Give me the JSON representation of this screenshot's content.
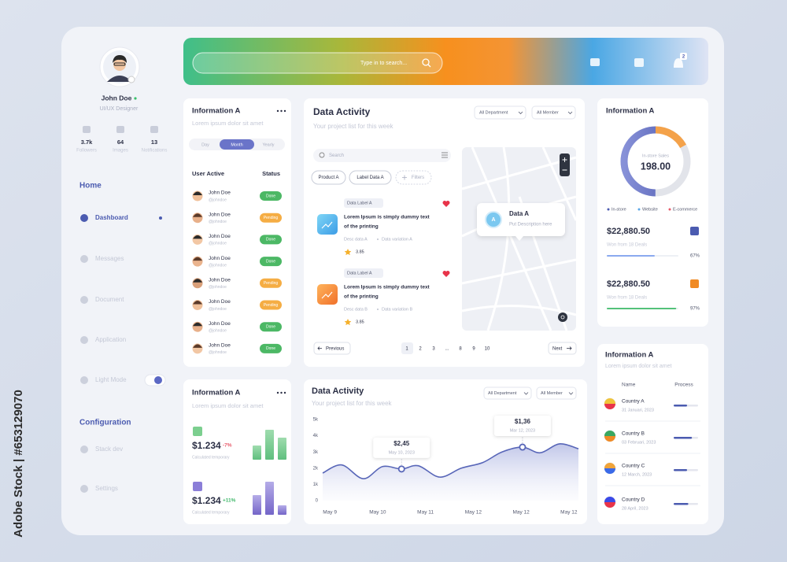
{
  "watermark": "Adobe Stock | #653129070",
  "sidebar": {
    "name": "John Doe",
    "role": "UI/UX Designer",
    "stats": [
      {
        "value": "3.7k",
        "label": "Followers"
      },
      {
        "value": "64",
        "label": "Images"
      },
      {
        "value": "13",
        "label": "Notifications"
      }
    ],
    "home": "Home",
    "menu": [
      "Dashboard",
      "Messages",
      "Document",
      "Application",
      "Light Mode"
    ],
    "config": "Configuration",
    "config_menu": [
      "Stack dev",
      "Settings"
    ]
  },
  "header": {
    "search": "Type in to search...",
    "badge": "2"
  },
  "users_card": {
    "title": "Information A",
    "subtitle": "Lorem ipsum dolor sit amet",
    "tabs": [
      "Day",
      "Month",
      "Yearly"
    ],
    "col1": "User Active",
    "col2": "Status",
    "rows": [
      {
        "name": "John Doe",
        "handle": "@johndoe",
        "status": "Done"
      },
      {
        "name": "John Doe",
        "handle": "@johndoe",
        "status": "Pending"
      },
      {
        "name": "John Doe",
        "handle": "@johndoe",
        "status": "Done"
      },
      {
        "name": "John Doe",
        "handle": "@johndoe",
        "status": "Done"
      },
      {
        "name": "John Doe",
        "handle": "@johndoe",
        "status": "Pending"
      },
      {
        "name": "John Doe",
        "handle": "@johndoe",
        "status": "Pending"
      },
      {
        "name": "John Doe",
        "handle": "@johndoe",
        "status": "Done"
      },
      {
        "name": "John Doe",
        "handle": "@johndoe",
        "status": "Done"
      }
    ]
  },
  "stats_card": {
    "title": "Information A",
    "subtitle": "Lorem ipsum dolor sit amet",
    "items": [
      {
        "amount": "$1.234",
        "change": "-7%",
        "note": "Calculated temporary"
      },
      {
        "amount": "$1.234",
        "change": "+11%",
        "note": "Calculated temporary"
      }
    ]
  },
  "activity": {
    "title": "Data Activity",
    "subtitle": "Your project list for this week",
    "filters": [
      "All Department",
      "All Member"
    ],
    "search": "Search",
    "chips": [
      "Product A",
      "Label Data A",
      "Filters"
    ],
    "items": [
      {
        "label": "Data Label A",
        "text": [
          "Lorem Ipsum is simply dummy text",
          "of the printing"
        ],
        "desc": "Desc data A",
        "variation": "Data variation A",
        "rating": "3.85"
      },
      {
        "label": "Data Label A",
        "text": [
          "Lorem Ipsum is simply dummy text",
          "of the printing"
        ],
        "desc": "Desc data B",
        "variation": "Data variation B",
        "rating": "3.85"
      }
    ],
    "map_popup": {
      "avatar": "A",
      "title": "Data A",
      "text": "Put Description here"
    },
    "pagination": {
      "prev": "Previous",
      "pages": [
        "1",
        "2",
        "3",
        "...",
        "8",
        "9",
        "10"
      ],
      "next": "Next"
    }
  },
  "chart_data": {
    "type": "line",
    "title": "Data Activity",
    "subtitle": "Your project list for this week",
    "filters": [
      "All Department",
      "All Member"
    ],
    "color": "#5866b8",
    "x": [
      -0.15,
      0.25,
      0.7,
      1.1,
      1.5,
      1.85,
      2.3,
      2.75,
      3.2,
      3.6,
      4.03,
      4.4,
      4.8,
      5.2
    ],
    "values": [
      1700,
      2200,
      1350,
      2100,
      1950,
      2150,
      1450,
      2000,
      2350,
      3000,
      3300,
      2950,
      3500,
      3200
    ],
    "xlim": [
      -0.15,
      5.2
    ],
    "xticks": [
      {
        "value": 0,
        "label": "May 9"
      },
      {
        "value": 1,
        "label": "May 10"
      },
      {
        "value": 2,
        "label": "May 11"
      },
      {
        "value": 3,
        "label": "May 12"
      },
      {
        "value": 4,
        "label": "May 12"
      },
      {
        "value": 5,
        "label": "May 12"
      }
    ],
    "ylim": [
      0,
      5000
    ],
    "yticks": [
      0,
      {
        "value": 1000,
        "label": "1k"
      },
      {
        "value": 2000,
        "label": "2k"
      },
      {
        "value": 3000,
        "label": "3k"
      },
      {
        "value": 4000,
        "label": "4k"
      },
      {
        "value": 5000,
        "label": "5k"
      }
    ],
    "annotations": [
      {
        "x": 1.5,
        "y": 1950,
        "label": "$2,45",
        "sub": "May 10, 2023"
      },
      {
        "x": 4.03,
        "y": 3300,
        "label": "$1,36",
        "sub": "Mar 12, 2023"
      }
    ]
  },
  "sales_card": {
    "title": "Information A",
    "donut_label": "In-store Sales",
    "donut_value": "198.00",
    "legend": [
      "In-store",
      "Website",
      "E-commerce"
    ],
    "deals": [
      {
        "amount": "$22,880.50",
        "note": "Won from 18 Deals",
        "progress": {
          "value": 67,
          "label": "67%"
        }
      },
      {
        "amount": "$22,880.50",
        "note": "Won from 18 Deals",
        "progress": {
          "value": 97,
          "label": "97%"
        }
      }
    ]
  },
  "country_card": {
    "title": "Information A",
    "subtitle": "Lorem ipsum dolor sit amet",
    "col1": "Name",
    "col2": "Process",
    "rows": [
      {
        "name": "Country A",
        "date": "31 Januari, 2023"
      },
      {
        "name": "Country B",
        "date": "03 Februari, 2023"
      },
      {
        "name": "Country C",
        "date": "12 March, 2023"
      },
      {
        "name": "Country D",
        "date": "28 April, 2023"
      }
    ]
  }
}
